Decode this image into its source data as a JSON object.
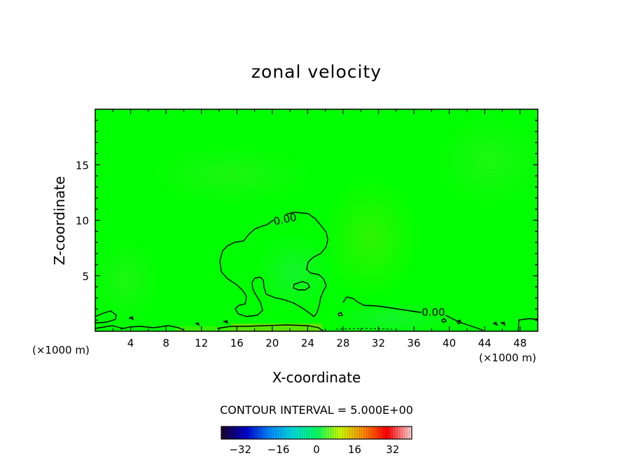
{
  "title": "zonal velocity",
  "chart_data": {
    "type": "heatmap",
    "title": "zonal velocity",
    "xlabel": "X-coordinate",
    "ylabel": "Z-coordinate",
    "x_unit": "(×1000 m)",
    "y_unit": "(×1000 m)",
    "xlim": [
      0,
      50
    ],
    "ylim": [
      0,
      20
    ],
    "x_ticks": [
      4,
      8,
      12,
      16,
      20,
      24,
      28,
      32,
      36,
      40,
      44,
      48
    ],
    "y_ticks": [
      5,
      10,
      15
    ],
    "contour_interval_text": "CONTOUR INTERVAL = 5.000E+00",
    "contour_labels": [
      {
        "text": "0.00",
        "x": 21.5,
        "y": 9.9
      },
      {
        "text": "0.00",
        "x": 38.2,
        "y": 1.5
      }
    ],
    "colorbar": {
      "min": -40,
      "max": 40,
      "ticks": [
        -32,
        -16,
        0,
        16,
        32
      ],
      "colors": [
        "#1a0033",
        "#0000cc",
        "#0088ff",
        "#00dddd",
        "#00ff66",
        "#ccff00",
        "#ff8800",
        "#ff0000",
        "#ffcccc"
      ]
    },
    "background_color": "#00ff00"
  }
}
